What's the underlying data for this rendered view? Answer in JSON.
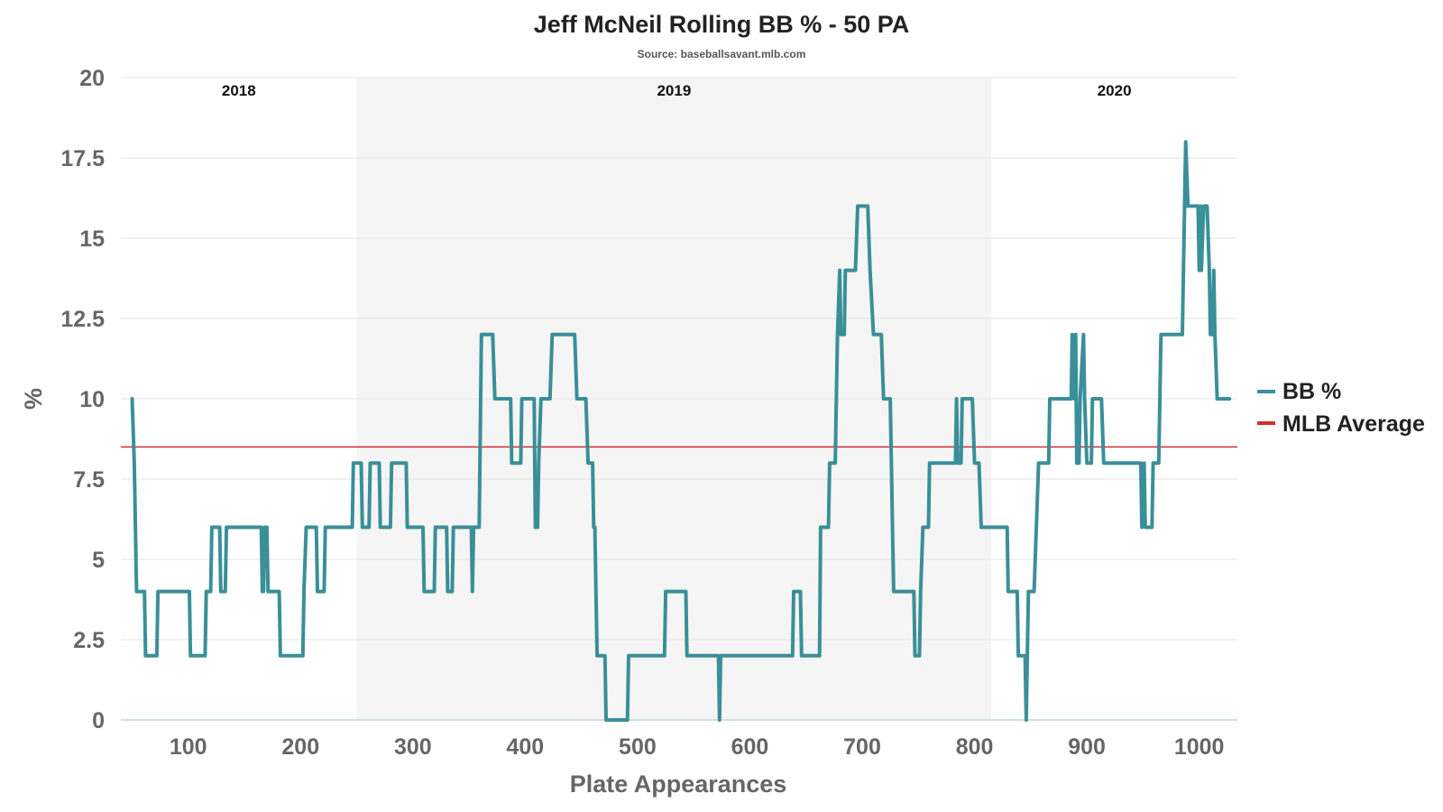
{
  "chart_data": {
    "type": "line",
    "title": "Jeff McNeil Rolling BB % - 50 PA",
    "subtitle": "Source: baseballsavant.mlb.com",
    "xlabel": "Plate Appearances",
    "ylabel": "%",
    "xlim": [
      40,
      1034
    ],
    "ylim": [
      0,
      20
    ],
    "x_ticks": [
      100,
      200,
      300,
      400,
      500,
      600,
      700,
      800,
      900,
      1000
    ],
    "y_ticks": [
      0,
      2.5,
      5,
      7.5,
      10,
      12.5,
      15,
      17.5,
      20
    ],
    "x_tick_labels": [
      "100",
      "200",
      "300",
      "400",
      "500",
      "600",
      "700",
      "800",
      "900",
      "1000"
    ],
    "y_tick_labels": [
      "0",
      "2.5",
      "5",
      "7.5",
      "10",
      "12.5",
      "15",
      "17.5",
      "20"
    ],
    "grid": "horizontal",
    "legend_position": "right",
    "seasons": [
      {
        "label": "2018",
        "start": 40,
        "end": 250,
        "shaded": false
      },
      {
        "label": "2019",
        "start": 250,
        "end": 815,
        "shaded": true
      },
      {
        "label": "2020",
        "start": 815,
        "end": 1034,
        "shaded": false
      }
    ],
    "reference_line": {
      "name": "MLB Average",
      "value": 8.5,
      "color": "#d32f2f"
    },
    "series": [
      {
        "name": "BB %",
        "color": "#3a8f98",
        "points": [
          [
            50,
            10
          ],
          [
            52,
            8
          ],
          [
            54,
            4
          ],
          [
            61,
            4
          ],
          [
            62,
            2
          ],
          [
            72,
            2
          ],
          [
            73,
            4
          ],
          [
            101,
            4
          ],
          [
            102,
            2
          ],
          [
            115,
            2
          ],
          [
            116,
            4
          ],
          [
            120,
            4
          ],
          [
            121,
            6
          ],
          [
            128,
            6
          ],
          [
            129,
            4
          ],
          [
            133,
            4
          ],
          [
            134,
            6
          ],
          [
            165,
            6
          ],
          [
            166,
            4
          ],
          [
            167,
            4
          ],
          [
            168,
            6
          ],
          [
            170,
            6
          ],
          [
            171,
            4
          ],
          [
            181,
            4
          ],
          [
            182,
            2
          ],
          [
            202,
            2
          ],
          [
            203,
            4
          ],
          [
            205,
            6
          ],
          [
            214,
            6
          ],
          [
            215,
            4
          ],
          [
            221,
            4
          ],
          [
            222,
            6
          ],
          [
            246,
            6
          ],
          [
            247,
            8
          ],
          [
            254,
            8
          ],
          [
            255,
            6
          ],
          [
            261,
            6
          ],
          [
            262,
            8
          ],
          [
            270,
            8
          ],
          [
            271,
            6
          ],
          [
            280,
            6
          ],
          [
            281,
            8
          ],
          [
            294,
            8
          ],
          [
            295,
            6
          ],
          [
            309,
            6
          ],
          [
            310,
            4
          ],
          [
            319,
            4
          ],
          [
            320,
            6
          ],
          [
            330,
            6
          ],
          [
            331,
            4
          ],
          [
            335,
            4
          ],
          [
            336,
            6
          ],
          [
            352,
            6
          ],
          [
            353,
            4
          ],
          [
            354,
            6
          ],
          [
            359,
            6
          ],
          [
            361,
            12
          ],
          [
            371,
            12
          ],
          [
            373,
            10
          ],
          [
            387,
            10
          ],
          [
            388,
            8
          ],
          [
            396,
            8
          ],
          [
            397,
            10
          ],
          [
            408,
            10
          ],
          [
            409,
            6
          ],
          [
            411,
            6
          ],
          [
            412,
            8
          ],
          [
            414,
            10
          ],
          [
            422,
            10
          ],
          [
            424,
            12
          ],
          [
            444,
            12
          ],
          [
            446,
            10
          ],
          [
            454,
            10
          ],
          [
            456,
            8
          ],
          [
            460,
            8
          ],
          [
            461,
            6
          ],
          [
            462,
            6
          ],
          [
            463,
            4
          ],
          [
            464,
            2
          ],
          [
            471,
            2
          ],
          [
            472,
            0
          ],
          [
            491,
            0
          ],
          [
            492,
            2
          ],
          [
            524,
            2
          ],
          [
            525,
            4
          ],
          [
            543,
            4
          ],
          [
            544,
            2
          ],
          [
            572,
            2
          ],
          [
            573,
            0
          ],
          [
            574,
            2
          ],
          [
            638,
            2
          ],
          [
            639,
            4
          ],
          [
            645,
            4
          ],
          [
            646,
            2
          ],
          [
            662,
            2
          ],
          [
            663,
            6
          ],
          [
            670,
            6
          ],
          [
            671,
            8
          ],
          [
            676,
            8
          ],
          [
            678,
            12
          ],
          [
            680,
            14
          ],
          [
            681,
            12
          ],
          [
            684,
            12
          ],
          [
            685,
            14
          ],
          [
            694,
            14
          ],
          [
            696,
            16
          ],
          [
            705,
            16
          ],
          [
            707,
            14
          ],
          [
            710,
            12
          ],
          [
            717,
            12
          ],
          [
            719,
            10
          ],
          [
            725,
            10
          ],
          [
            727,
            6
          ],
          [
            728,
            4
          ],
          [
            746,
            4
          ],
          [
            747,
            2
          ],
          [
            751,
            2
          ],
          [
            752,
            4
          ],
          [
            754,
            6
          ],
          [
            759,
            6
          ],
          [
            760,
            8
          ],
          [
            783,
            8
          ],
          [
            784,
            10
          ],
          [
            785,
            8
          ],
          [
            788,
            8
          ],
          [
            789,
            10
          ],
          [
            798,
            10
          ],
          [
            800,
            8
          ],
          [
            804,
            8
          ],
          [
            806,
            6
          ],
          [
            829,
            6
          ],
          [
            830,
            4
          ],
          [
            838,
            4
          ],
          [
            839,
            2
          ],
          [
            845,
            2
          ],
          [
            846,
            0
          ],
          [
            847,
            2
          ],
          [
            848,
            4
          ],
          [
            853,
            4
          ],
          [
            855,
            6
          ],
          [
            857,
            8
          ],
          [
            866,
            8
          ],
          [
            867,
            10
          ],
          [
            886,
            10
          ],
          [
            887,
            12
          ],
          [
            889,
            10
          ],
          [
            890,
            12
          ],
          [
            891,
            8
          ],
          [
            893,
            8
          ],
          [
            894,
            10
          ],
          [
            897,
            12
          ],
          [
            898,
            10
          ],
          [
            900,
            8
          ],
          [
            904,
            8
          ],
          [
            905,
            10
          ],
          [
            913,
            10
          ],
          [
            915,
            8
          ],
          [
            948,
            8
          ],
          [
            949,
            6
          ],
          [
            951,
            8
          ],
          [
            952,
            6
          ],
          [
            958,
            6
          ],
          [
            959,
            8
          ],
          [
            964,
            8
          ],
          [
            966,
            12
          ],
          [
            985,
            12
          ],
          [
            986,
            14
          ],
          [
            988,
            18
          ],
          [
            990,
            16
          ],
          [
            999,
            16
          ],
          [
            1000,
            14
          ],
          [
            1001,
            16
          ],
          [
            1002,
            14
          ],
          [
            1004,
            16
          ],
          [
            1007,
            16
          ],
          [
            1009,
            14
          ],
          [
            1010,
            12
          ],
          [
            1012,
            12
          ],
          [
            1013,
            14
          ],
          [
            1014,
            12
          ],
          [
            1016,
            10
          ],
          [
            1027,
            10
          ]
        ]
      }
    ]
  }
}
